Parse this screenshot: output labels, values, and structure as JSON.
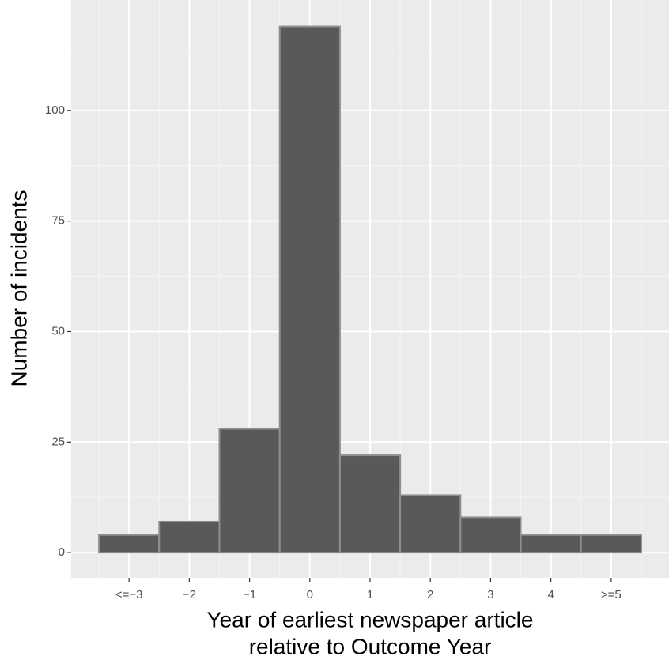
{
  "chart_data": {
    "type": "bar",
    "categories": [
      "<=−3",
      "−2",
      "−1",
      "0",
      "1",
      "2",
      "3",
      "4",
      ">=5"
    ],
    "values": [
      4,
      7,
      28,
      119,
      22,
      13,
      8,
      4,
      4
    ],
    "color": "#595959",
    "edge_color": "#8f8f8f",
    "xlabel": [
      "Year of earliest newspaper article",
      "relative to Outcome Year"
    ],
    "ylabel": "Number of incidents",
    "ylim": [
      -5.7,
      125
    ],
    "yticks": [
      0,
      25,
      50,
      75,
      100
    ],
    "grid": true
  }
}
